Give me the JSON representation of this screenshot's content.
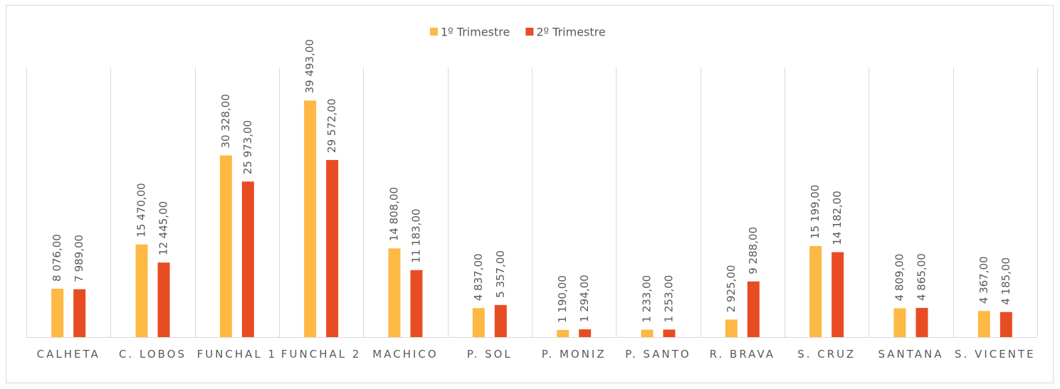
{
  "chart_data": {
    "type": "bar",
    "categories": [
      "CALHETA",
      "C. LOBOS",
      "FUNCHAL 1",
      "FUNCHAL 2",
      "MACHICO",
      "P. SOL",
      "P. MONIZ",
      "P. SANTO",
      "R. BRAVA",
      "S. CRUZ",
      "SANTANA",
      "S. VICENTE"
    ],
    "series": [
      {
        "name": "1º Trimestre",
        "color": "#fdb944",
        "values": [
          8076,
          15470,
          30328,
          39493,
          14808,
          4837,
          1190,
          1233,
          2925,
          15199,
          4809,
          4367
        ],
        "value_labels": [
          "8 076,00",
          "15 470,00",
          "30 328,00",
          "39 493,00",
          "14 808,00",
          "4 837,00",
          "1 190,00",
          "1 233,00",
          "2 925,00",
          "15 199,00",
          "4 809,00",
          "4 367,00"
        ]
      },
      {
        "name": "2º Trimestre",
        "color": "#e84c22",
        "values": [
          7989,
          12445,
          25973,
          29572,
          11183,
          5357,
          1294,
          1253,
          9288,
          14182,
          4865,
          4185
        ],
        "value_labels": [
          "7 989,00",
          "12 445,00",
          "25 973,00",
          "29 572,00",
          "11 183,00",
          "5 357,00",
          "1 294,00",
          "1 253,00",
          "9 288,00",
          "14 182,00",
          "4 865,00",
          "4 185,00"
        ]
      }
    ],
    "ylim": [
      0,
      45000
    ],
    "legend": "top"
  }
}
